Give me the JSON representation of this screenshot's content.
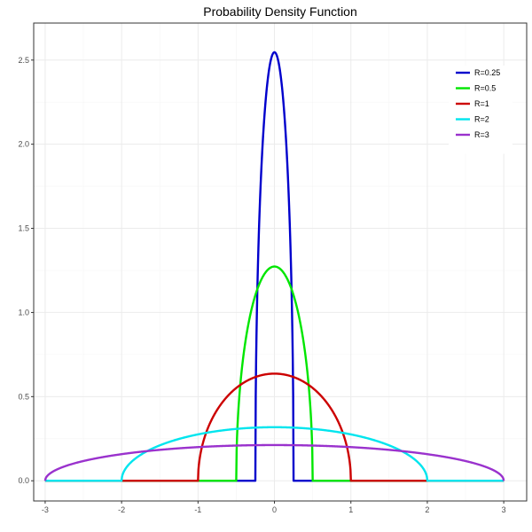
{
  "chart_data": {
    "type": "line",
    "title": "Probability Density Function",
    "xlabel": "",
    "ylabel": "",
    "xlim": [
      -3.15,
      3.3
    ],
    "ylim": [
      -0.12,
      2.72
    ],
    "x_ticks": [
      -3,
      -2,
      -1,
      0,
      1,
      2,
      3
    ],
    "x_tick_labels": [
      "-3",
      "-2",
      "-1",
      "0",
      "1",
      "2",
      "3"
    ],
    "y_ticks": [
      0.0,
      0.5,
      1.0,
      1.5,
      2.0,
      2.5
    ],
    "y_tick_labels": [
      "0.0",
      "0.5",
      "1.0",
      "1.5",
      "2.0",
      "2.5"
    ],
    "grid": true,
    "legend_position": "top-right",
    "x_range": [
      -3,
      3
    ],
    "series": [
      {
        "name": "R=0.25",
        "R": 0.25,
        "color": "#0000CC"
      },
      {
        "name": "R=0.5",
        "R": 0.5,
        "color": "#00E600"
      },
      {
        "name": "R=1",
        "R": 1,
        "color": "#CC0000"
      },
      {
        "name": "R=2",
        "R": 2,
        "color": "#00E5EE"
      },
      {
        "name": "R=3",
        "R": 3,
        "color": "#9A32CD"
      }
    ]
  }
}
